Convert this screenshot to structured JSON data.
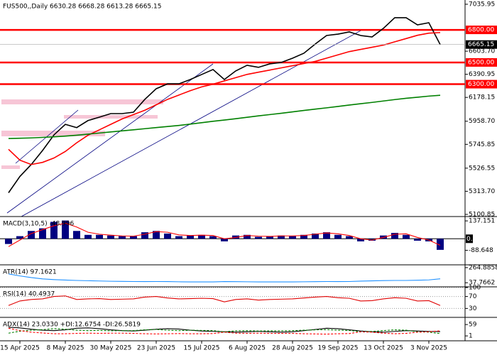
{
  "chart_data": [
    {
      "type": "line",
      "title": "FUS500,,Daily  6630.28 6668.28 6613.28 6665.15",
      "categories": [
        null,
        "15 Apr 2025",
        null,
        null,
        null,
        "8 May 2025",
        null,
        null,
        null,
        "30 May 2025",
        null,
        null,
        null,
        "23 Jun 2025",
        null,
        null,
        null,
        "15 Jul 2025",
        null,
        null,
        null,
        "6 Aug 2025",
        null,
        null,
        null,
        "28 Aug 2025",
        null,
        null,
        null,
        "19 Sep 2025",
        null,
        null,
        null,
        "13 Oct 2025",
        null,
        null,
        null,
        "3 Nov 2025",
        null
      ],
      "ylim": [
        5081,
        7075
      ],
      "yticks": [
        {
          "value": 7035.95,
          "label": "7035.95"
        },
        {
          "value": 6603.7,
          "label": "6603.70"
        },
        {
          "value": 6390.95,
          "label": "6390.95"
        },
        {
          "value": 6178.15,
          "label": "6178.15"
        },
        {
          "value": 5958.7,
          "label": "5958.70"
        },
        {
          "value": 5745.85,
          "label": "5745.85"
        },
        {
          "value": 5526.55,
          "label": "5526.55"
        },
        {
          "value": 5313.7,
          "label": "5313.70"
        },
        {
          "value": 5100.85,
          "label": "5100.85"
        }
      ],
      "levels": [
        {
          "value": 6800,
          "label": "6800.00"
        },
        {
          "value": 6500,
          "label": "6500.00"
        },
        {
          "value": 6300,
          "label": "6300.00"
        }
      ],
      "level_color": "#ff0000",
      "last_price": {
        "value": 6665.15,
        "label": "6665.15"
      },
      "series": [
        {
          "style": "line",
          "color": "#000000",
          "values": [
            5300,
            5450,
            5560,
            5690,
            5833,
            5930,
            5900,
            5965,
            5996,
            6029,
            6029,
            6042,
            6160,
            6258,
            6303,
            6303,
            6343,
            6389,
            6435,
            6343,
            6422,
            6474,
            6455,
            6487,
            6500,
            6539,
            6585,
            6670,
            6748,
            6761,
            6781,
            6748,
            6735,
            6814,
            6912,
            6912,
            6846,
            6866,
            6665
          ]
        },
        {
          "style": "line",
          "color": "#ff0000",
          "values": [
            5700,
            5600,
            5560,
            5580,
            5620,
            5680,
            5760,
            5830,
            5880,
            5930,
            5980,
            6020,
            6060,
            6110,
            6160,
            6200,
            6240,
            6275,
            6300,
            6330,
            6360,
            6390,
            6410,
            6430,
            6450,
            6470,
            6490,
            6510,
            6540,
            6570,
            6600,
            6620,
            6640,
            6660,
            6690,
            6720,
            6750,
            6770,
            6775
          ]
        },
        {
          "style": "line",
          "color": "#008000",
          "values": [
            5800,
            5802,
            5805,
            5810,
            5815,
            5822,
            5830,
            5840,
            5850,
            5860,
            5870,
            5880,
            5890,
            5900,
            5910,
            5920,
            5932,
            5945,
            5958,
            5970,
            5982,
            5995,
            6008,
            6020,
            6032,
            6045,
            6058,
            6070,
            6082,
            6095,
            6108,
            6120,
            6132,
            6145,
            6158,
            6170,
            6180,
            6190,
            6198
          ]
        }
      ]
    },
    {
      "type": "combo",
      "title": "MACD(3,10,5) -48.996",
      "ylim": [
        -200,
        165
      ],
      "yticks": [
        {
          "value": 137.151,
          "label": "137.151"
        },
        {
          "value": -88.648,
          "label": "-88.648"
        }
      ],
      "zero_tick": {
        "value": 0,
        "label": "0.00"
      },
      "series": [
        {
          "style": "bar",
          "color": "#000080",
          "values": [
            -40,
            20,
            60,
            80,
            130,
            140,
            60,
            30,
            30,
            25,
            20,
            20,
            50,
            60,
            40,
            20,
            25,
            30,
            20,
            -20,
            25,
            30,
            15,
            20,
            25,
            20,
            30,
            40,
            50,
            30,
            20,
            -20,
            -15,
            25,
            45,
            30,
            -15,
            -20,
            -85
          ]
        },
        {
          "style": "line",
          "color": "#ff0000",
          "values": [
            -60,
            -10,
            40,
            70,
            100,
            120,
            90,
            50,
            35,
            28,
            22,
            20,
            35,
            55,
            50,
            30,
            25,
            28,
            25,
            0,
            10,
            25,
            20,
            18,
            22,
            22,
            25,
            35,
            45,
            38,
            25,
            0,
            -10,
            10,
            35,
            38,
            10,
            -10,
            -50
          ]
        }
      ]
    },
    {
      "type": "combo",
      "title": "ATR(14) 97.1621",
      "ylim": [
        -24,
        296
      ],
      "yticks": [
        {
          "value": 264.8858,
          "label": "264.8858"
        },
        {
          "value": 37.7662,
          "label": "37.7662"
        }
      ],
      "series": [
        {
          "style": "line",
          "color": "#1e90ff",
          "values": [
            170,
            140,
            115,
            95,
            85,
            78,
            72,
            68,
            64,
            60,
            58,
            56,
            55,
            56,
            55,
            52,
            50,
            50,
            50,
            55,
            54,
            52,
            50,
            50,
            50,
            50,
            52,
            54,
            56,
            55,
            56,
            62,
            66,
            70,
            72,
            72,
            75,
            80,
            97
          ]
        }
      ]
    },
    {
      "type": "combo",
      "title": "RSI(14) 40.4937",
      "ylim": [
        0,
        100
      ],
      "yticks": [
        100,
        70,
        30
      ],
      "grid": true,
      "series": [
        {
          "style": "line",
          "color": "#e00000",
          "values": [
            40,
            55,
            60,
            62,
            70,
            72,
            60,
            62,
            63,
            60,
            61,
            62,
            68,
            70,
            65,
            62,
            63,
            64,
            63,
            52,
            60,
            62,
            58,
            60,
            61,
            62,
            65,
            68,
            70,
            66,
            64,
            55,
            56,
            62,
            66,
            64,
            55,
            56,
            40
          ]
        }
      ]
    },
    {
      "type": "combo",
      "title": "ADX(14) 23.0330 +DI:12.6754 -DI:26.5819",
      "ylim": [
        -24,
        92
      ],
      "yticks": [
        59,
        1
      ],
      "series": [
        {
          "style": "line",
          "color": "#000000",
          "values": [
            45,
            42,
            35,
            30,
            28,
            32,
            40,
            42,
            38,
            32,
            28,
            26,
            30,
            35,
            38,
            36,
            30,
            26,
            24,
            22,
            20,
            22,
            24,
            22,
            20,
            22,
            28,
            34,
            40,
            38,
            32,
            26,
            22,
            20,
            24,
            28,
            26,
            24,
            23
          ]
        },
        {
          "style": "dashed",
          "color": "#008000",
          "values": [
            15,
            25,
            30,
            33,
            38,
            35,
            30,
            28,
            29,
            27,
            28,
            28,
            32,
            34,
            30,
            28,
            30,
            29,
            28,
            22,
            27,
            28,
            26,
            27,
            27,
            28,
            30,
            32,
            33,
            30,
            29,
            22,
            24,
            28,
            32,
            30,
            22,
            20,
            13
          ]
        },
        {
          "style": "dashed",
          "color": "#ff0000",
          "values": [
            40,
            28,
            20,
            16,
            12,
            12,
            14,
            15,
            14,
            15,
            15,
            14,
            12,
            11,
            12,
            13,
            12,
            12,
            13,
            20,
            15,
            14,
            15,
            14,
            14,
            14,
            12,
            11,
            10,
            12,
            13,
            22,
            20,
            15,
            12,
            14,
            20,
            22,
            27
          ]
        }
      ]
    }
  ]
}
